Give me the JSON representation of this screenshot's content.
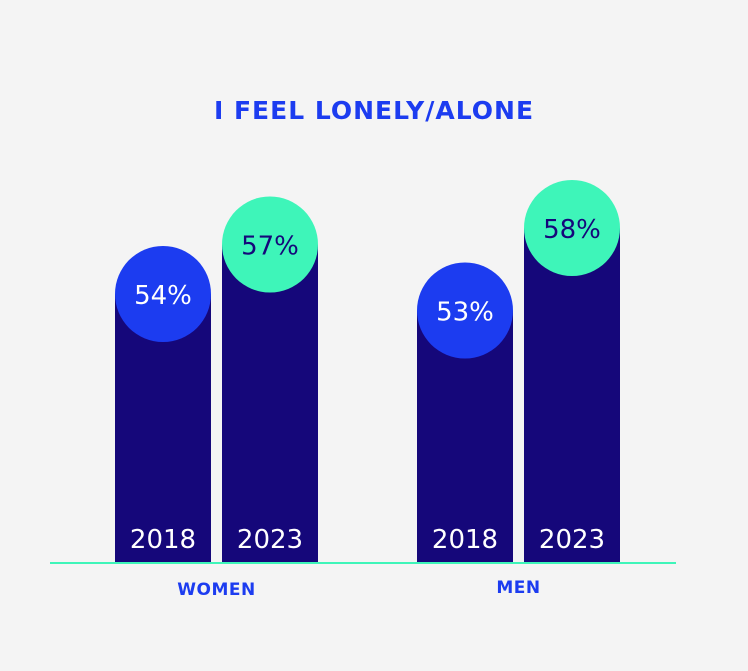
{
  "chart_data": {
    "type": "bar",
    "title": "I FEEL LONELY/ALONE",
    "categories": [
      "WOMEN",
      "MEN"
    ],
    "series": [
      {
        "name": "2018",
        "values": [
          54,
          53
        ]
      },
      {
        "name": "2023",
        "values": [
          57,
          58
        ]
      }
    ],
    "value_suffix": "%",
    "xlabel": "",
    "ylabel": "",
    "grid": false,
    "legend": "none",
    "colors": {
      "bar": "#15077a",
      "circle_2018": "#1c3cf0",
      "circle_2023": "#3ef5b9",
      "label_2018": "#ffffff",
      "label_2023": "#15077a",
      "baseline": "#3ef5b9",
      "category_label": "#1c3cf0",
      "year_label": "#ffffff",
      "background": "#f4f4f4"
    }
  }
}
